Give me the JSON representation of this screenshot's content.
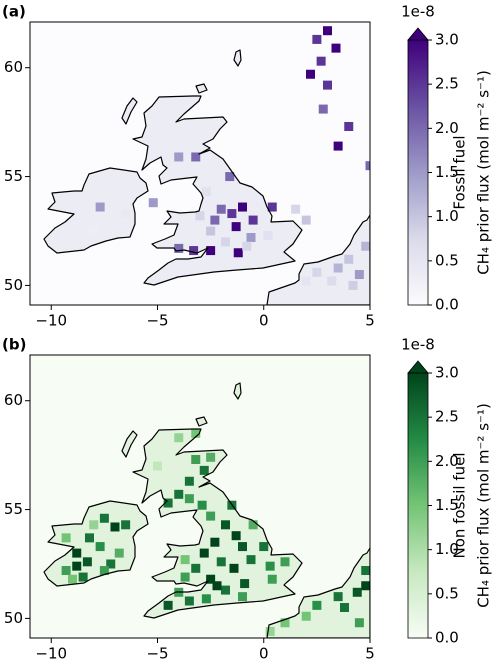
{
  "chart_data": [
    {
      "type": "heatmap",
      "title": "(a)",
      "xlim": [
        -11,
        5
      ],
      "ylim": [
        49.1,
        62.1
      ],
      "xticks": [
        {
          "value": -10,
          "label": "−10"
        },
        {
          "value": -5,
          "label": "−5"
        },
        0,
        5
      ],
      "yticks": [
        50,
        55,
        60
      ],
      "colors": [
        "#fcfbfd",
        "#dadaeb",
        "#9e9ac8",
        "#6a51a3",
        "#3f007d"
      ],
      "colorbar": {
        "offset_label": "1e-8",
        "label": [
          "Fossil fuel",
          "CH₄ prior flux (mol m⁻² s⁻¹)"
        ],
        "lim": [
          0,
          3
        ],
        "ticks": [
          {
            "value": 0,
            "label": "0.0"
          },
          {
            "value": 0.5,
            "label": "0.5"
          },
          {
            "value": 1,
            "label": "1.0"
          },
          {
            "value": 1.5,
            "label": "1.5"
          },
          {
            "value": 2,
            "label": "2.0"
          },
          {
            "value": 2.5,
            "label": "2.5"
          },
          {
            "value": 3,
            "label": "3.0"
          }
        ]
      },
      "cells": [
        [
          3.0,
          61.7,
          3
        ],
        [
          2.5,
          61.3,
          2.5
        ],
        [
          3.4,
          60.9,
          3
        ],
        [
          2.7,
          60.3,
          2.5
        ],
        [
          2.2,
          59.7,
          3
        ],
        [
          3.0,
          59.2,
          2.5
        ],
        [
          2.8,
          58.1,
          2
        ],
        [
          4.0,
          57.3,
          2.5
        ],
        [
          3.5,
          56.4,
          3
        ],
        [
          5.0,
          55.5,
          2
        ],
        [
          -1.0,
          53.6,
          3
        ],
        [
          -1.5,
          53.3,
          2.5
        ],
        [
          -1.3,
          52.7,
          3
        ],
        [
          -0.5,
          53.0,
          2.5
        ],
        [
          0.4,
          53.6,
          2.5
        ],
        [
          -2.5,
          51.6,
          3
        ],
        [
          -3.3,
          51.6,
          2.5
        ],
        [
          -4.0,
          51.7,
          2
        ],
        [
          -1.2,
          51.5,
          3
        ],
        [
          -2.3,
          53.0,
          2
        ],
        [
          -3.2,
          55.9,
          2
        ],
        [
          -4.0,
          55.9,
          1.5
        ],
        [
          -1.6,
          55.0,
          2
        ],
        [
          -2.0,
          53.5,
          2
        ],
        [
          -0.6,
          52.2,
          1.5
        ],
        [
          -5.2,
          53.8,
          1.5
        ],
        [
          -2.5,
          52.5,
          1
        ],
        [
          -1.8,
          52.0,
          0.8
        ],
        [
          -0.8,
          51.8,
          0.8
        ],
        [
          0.2,
          52.3,
          0.6
        ],
        [
          -3.0,
          53.2,
          0.8
        ],
        [
          -2.7,
          54.3,
          0.6
        ],
        [
          -7.7,
          53.6,
          1.5
        ],
        [
          -6.5,
          53.3,
          0.4
        ],
        [
          -8.0,
          52.5,
          0.3
        ],
        [
          3.5,
          50.8,
          1.2
        ],
        [
          4.5,
          50.5,
          1.5
        ],
        [
          4.0,
          51.2,
          1
        ],
        [
          2.5,
          50.6,
          0.8
        ],
        [
          4.8,
          51.8,
          1.2
        ],
        [
          2.0,
          50.2,
          0.5
        ],
        [
          3.2,
          50.2,
          0.7
        ],
        [
          4.2,
          50.0,
          0.9
        ],
        [
          1.5,
          53.5,
          0.8
        ],
        [
          2.0,
          53.0,
          1
        ]
      ]
    },
    {
      "type": "heatmap",
      "title": "(b)",
      "xlim": [
        -11,
        5
      ],
      "ylim": [
        49.1,
        62.1
      ],
      "xticks": [
        {
          "value": -10,
          "label": "−10"
        },
        {
          "value": -5,
          "label": "−5"
        },
        0,
        5
      ],
      "yticks": [
        50,
        55,
        60
      ],
      "colors": [
        "#f7fcf5",
        "#c7e9c0",
        "#74c476",
        "#238b45",
        "#00441b"
      ],
      "colorbar": {
        "offset_label": "1e-8",
        "label": [
          "Non fossil fuel",
          "CH₄ prior flux (mol m⁻² s⁻¹)"
        ],
        "lim": [
          0,
          3
        ],
        "ticks": [
          {
            "value": 0,
            "label": "0.0"
          },
          {
            "value": 0.5,
            "label": "0.5"
          },
          {
            "value": 1,
            "label": "1.0"
          },
          {
            "value": 1.5,
            "label": "1.5"
          },
          {
            "value": 2,
            "label": "2.0"
          },
          {
            "value": 2.5,
            "label": "2.5"
          },
          {
            "value": 3,
            "label": "3.0"
          }
        ]
      },
      "cells": [
        [
          -7.5,
          54.6,
          2.5
        ],
        [
          -7.0,
          54.2,
          3
        ],
        [
          -6.5,
          54.3,
          2.5
        ],
        [
          -8.2,
          53.7,
          2.5
        ],
        [
          -7.7,
          53.3,
          2.2
        ],
        [
          -8.8,
          53.0,
          3
        ],
        [
          -8.3,
          52.6,
          2.8
        ],
        [
          -8.8,
          52.4,
          3
        ],
        [
          -7.2,
          52.5,
          2.5
        ],
        [
          -7.5,
          52.2,
          2
        ],
        [
          -9.3,
          52.2,
          2
        ],
        [
          -8.5,
          51.9,
          2.5
        ],
        [
          -6.8,
          53.0,
          1.8
        ],
        [
          -9.3,
          53.7,
          1.5
        ],
        [
          -8.0,
          54.3,
          1.2
        ],
        [
          -9.0,
          51.8,
          1.5
        ],
        [
          -3.2,
          57.3,
          2
        ],
        [
          -2.8,
          56.8,
          2.5
        ],
        [
          -3.5,
          56.3,
          2.5
        ],
        [
          -2.5,
          57.4,
          1.8
        ],
        [
          -4.0,
          55.7,
          2.5
        ],
        [
          -3.5,
          55.5,
          2
        ],
        [
          -2.9,
          55.2,
          2.2
        ],
        [
          -4.5,
          55.3,
          2.5
        ],
        [
          -4.0,
          58.3,
          1.2
        ],
        [
          -5.0,
          57.0,
          0.8
        ],
        [
          -3.2,
          58.5,
          1.5
        ],
        [
          -2.5,
          54.7,
          2
        ],
        [
          -1.8,
          54.3,
          2.8
        ],
        [
          -1.3,
          53.8,
          3
        ],
        [
          -2.3,
          53.5,
          3
        ],
        [
          -1.0,
          53.3,
          2.8
        ],
        [
          -2.8,
          53.0,
          3
        ],
        [
          -2.0,
          52.6,
          2.5
        ],
        [
          -1.4,
          52.3,
          3
        ],
        [
          -0.6,
          52.7,
          2.5
        ],
        [
          0.3,
          52.4,
          2.2
        ],
        [
          1.0,
          52.6,
          2
        ],
        [
          -3.2,
          52.3,
          2.5
        ],
        [
          -3.7,
          51.9,
          2
        ],
        [
          -2.5,
          51.8,
          3
        ],
        [
          -1.8,
          51.3,
          2.5
        ],
        [
          -0.9,
          51.6,
          2.8
        ],
        [
          0.4,
          51.8,
          2
        ],
        [
          -1.0,
          51.0,
          2
        ],
        [
          -3.5,
          50.8,
          2.5
        ],
        [
          -4.5,
          50.6,
          2.8
        ],
        [
          -2.7,
          50.9,
          2.2
        ],
        [
          -0.5,
          54.3,
          1.8
        ],
        [
          -1.5,
          55.2,
          2.5
        ],
        [
          -3.7,
          52.7,
          1.5
        ],
        [
          0.0,
          53.3,
          2.5
        ],
        [
          -2.2,
          51.5,
          3
        ],
        [
          -4.0,
          51.2,
          2
        ],
        [
          4.8,
          51.5,
          3
        ],
        [
          4.4,
          51.2,
          2.8
        ],
        [
          4.8,
          52.2,
          2.5
        ],
        [
          3.5,
          51.0,
          2.5
        ],
        [
          2.5,
          50.6,
          2.2
        ],
        [
          3.8,
          50.5,
          2.5
        ],
        [
          2.0,
          50.1,
          1.5
        ],
        [
          1.0,
          49.8,
          1.5
        ],
        [
          0.3,
          49.4,
          1.2
        ],
        [
          4.5,
          49.8,
          2
        ]
      ]
    }
  ]
}
